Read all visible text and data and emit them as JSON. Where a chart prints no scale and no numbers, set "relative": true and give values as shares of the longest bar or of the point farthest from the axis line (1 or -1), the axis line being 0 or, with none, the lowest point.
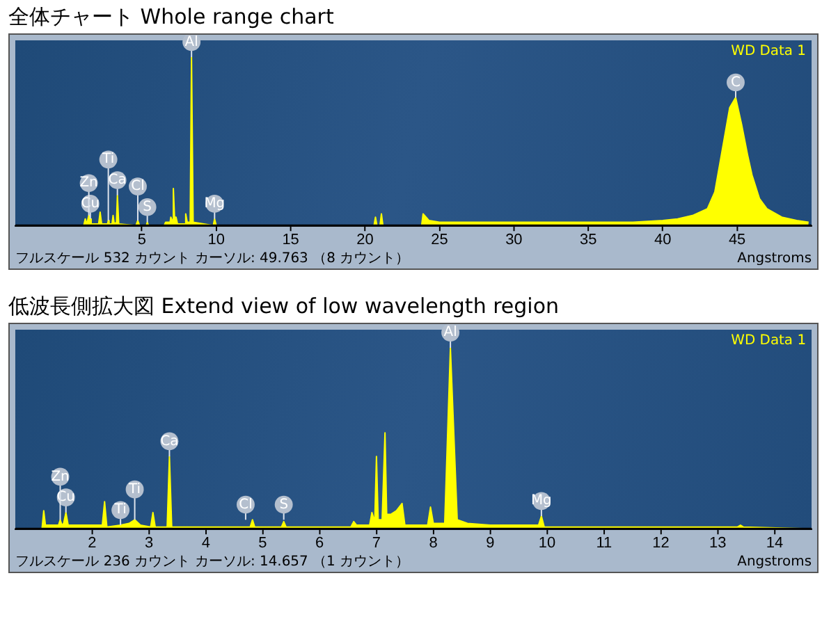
{
  "chart_data": [
    {
      "type": "area",
      "title": "全体チャート  Whole range chart",
      "xlabel": "Angstroms",
      "relative": true,
      "legend": "top right",
      "grid": false,
      "xlim": [
        -3.5,
        50
      ],
      "xticks": [
        5,
        10,
        15,
        20,
        25,
        30,
        35,
        40,
        45
      ],
      "series": [
        {
          "name": "WD Data 1",
          "color": "#ffff00",
          "x": [
            1.1,
            1.2,
            1.3,
            1.44,
            1.5,
            1.54,
            1.6,
            2.1,
            2.2,
            2.3,
            2.7,
            2.75,
            2.8,
            3.0,
            3.07,
            3.15,
            3.3,
            3.36,
            3.45,
            4.6,
            4.73,
            4.85,
            5.3,
            5.37,
            5.45,
            6.5,
            6.6,
            6.9,
            6.95,
            7.05,
            7.12,
            7.2,
            7.3,
            7.4,
            7.9,
            7.95,
            8.05,
            8.25,
            8.34,
            8.45,
            9.8,
            9.89,
            10.0,
            20.6,
            20.7,
            20.8,
            21.0,
            21.1,
            21.2,
            23.8,
            23.9,
            24.3,
            25,
            30,
            35,
            38,
            40,
            41,
            42,
            43,
            43.5,
            44,
            44.5,
            44.9,
            45.3,
            45.7,
            46,
            46.5,
            47,
            48,
            49,
            49.8
          ],
          "values": [
            0,
            0.04,
            0.01,
            0.06,
            0.01,
            0.04,
            0.01,
            0.01,
            0.08,
            0.01,
            0.01,
            0.03,
            0.01,
            0.01,
            0.06,
            0.01,
            0.02,
            0.18,
            0.01,
            0.0,
            0.03,
            0.0,
            0.0,
            0.02,
            0.0,
            0.0,
            0.02,
            0.02,
            0.05,
            0.03,
            0.22,
            0.05,
            0.05,
            0.01,
            0.01,
            0.07,
            0.02,
            0.02,
            1.0,
            0.02,
            0.0,
            0.04,
            0.0,
            0.0,
            0.05,
            0.0,
            0.0,
            0.07,
            0.0,
            0.0,
            0.07,
            0.03,
            0.02,
            0.02,
            0.02,
            0.02,
            0.03,
            0.04,
            0.06,
            0.1,
            0.2,
            0.45,
            0.7,
            0.76,
            0.6,
            0.42,
            0.3,
            0.16,
            0.1,
            0.05,
            0.03,
            0.02
          ]
        }
      ],
      "annotations": [
        {
          "text": "Al",
          "x": 8.34,
          "y": 1.0
        },
        {
          "text": "C",
          "x": 44.9,
          "y": 0.76
        },
        {
          "text": "Ca",
          "x": 3.36,
          "y": 0.18
        },
        {
          "text": "Cu",
          "x": 1.54,
          "y": 0.04
        },
        {
          "text": "Zn",
          "x": 1.44,
          "y": 0.06
        },
        {
          "text": "Ti",
          "x": 2.75,
          "y": 0.03
        },
        {
          "text": "S",
          "x": 5.37,
          "y": 0.02
        },
        {
          "text": "Cl",
          "x": 4.73,
          "y": 0.03
        },
        {
          "text": "Mg",
          "x": 9.89,
          "y": 0.04
        },
        "フルスケール 532 カウント カーソル: 49.763 （8 カウント）"
      ]
    },
    {
      "type": "area",
      "title": "低波長側拡大図  Extend view of low wavelength region",
      "xlabel": "Angstroms",
      "relative": true,
      "legend": "top right",
      "grid": false,
      "xlim": [
        0.65,
        14.65
      ],
      "xticks": [
        2,
        3,
        4,
        5,
        6,
        7,
        8,
        9,
        10,
        11,
        12,
        13,
        14
      ],
      "series": [
        {
          "name": "WD Data 1",
          "color": "#ffff00",
          "x": [
            1.12,
            1.15,
            1.18,
            1.3,
            1.41,
            1.44,
            1.47,
            1.5,
            1.54,
            1.58,
            1.9,
            2.18,
            2.22,
            2.26,
            2.5,
            2.65,
            2.75,
            2.85,
            3.03,
            3.07,
            3.11,
            3.32,
            3.36,
            3.4,
            3.8,
            4.6,
            4.78,
            4.82,
            4.86,
            5.33,
            5.37,
            5.41,
            6.55,
            6.6,
            6.65,
            6.88,
            6.92,
            6.97,
            7.0,
            7.03,
            7.1,
            7.15,
            7.18,
            7.25,
            7.35,
            7.45,
            7.5,
            7.9,
            7.95,
            8.0,
            8.2,
            8.3,
            8.42,
            8.6,
            9.0,
            9.85,
            9.9,
            9.95,
            10.5,
            12,
            13.35,
            13.4,
            13.45,
            14.6
          ],
          "values": [
            0,
            0.1,
            0.02,
            0.02,
            0.02,
            0.05,
            0.02,
            0.03,
            0.09,
            0.02,
            0.02,
            0.02,
            0.15,
            0.01,
            0.02,
            0.03,
            0.05,
            0.02,
            0.01,
            0.09,
            0.01,
            0.01,
            0.4,
            0.01,
            0.01,
            0.01,
            0.01,
            0.05,
            0.01,
            0.01,
            0.04,
            0.01,
            0.01,
            0.04,
            0.02,
            0.02,
            0.09,
            0.04,
            0.4,
            0.05,
            0.05,
            0.53,
            0.08,
            0.08,
            0.1,
            0.14,
            0.02,
            0.02,
            0.12,
            0.03,
            0.03,
            1.0,
            0.05,
            0.03,
            0.02,
            0.02,
            0.07,
            0.01,
            0.01,
            0.01,
            0.01,
            0.02,
            0.01,
            0.0
          ]
        }
      ],
      "annotations": [
        {
          "text": "Al",
          "x": 8.3,
          "y": 1.0
        },
        {
          "text": "Mg",
          "x": 9.9,
          "y": 0.07
        },
        {
          "text": "Ca",
          "x": 3.36,
          "y": 0.4
        },
        {
          "text": "Cu",
          "x": 1.54,
          "y": 0.09
        },
        {
          "text": "Zn",
          "x": 1.44,
          "y": 0.05
        },
        {
          "text": "Ti",
          "x": 2.5,
          "y": 0.02
        },
        {
          "text": "Ti",
          "x": 2.75,
          "y": 0.05
        },
        {
          "text": "Cl",
          "x": 4.7,
          "y": 0.05
        },
        {
          "text": "S",
          "x": 5.37,
          "y": 0.05
        },
        "フルスケール 236 カウント カーソル: 14.657 （1 カウント）"
      ]
    }
  ]
}
